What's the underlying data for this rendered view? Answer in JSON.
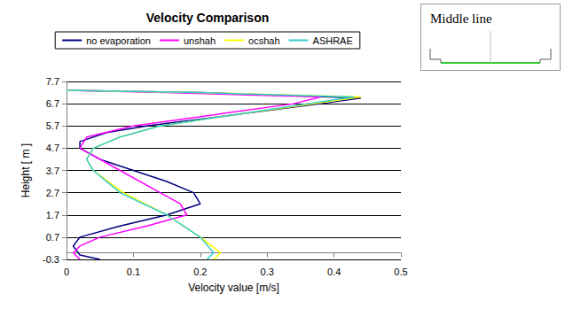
{
  "chart_data": {
    "type": "line",
    "title": "Velocity Comparison",
    "x_label": "Velocity value [m/s]",
    "y_label": "Height [ m ]",
    "xlim": [
      0,
      0.5
    ],
    "xticks": [
      0,
      0.1,
      0.2,
      0.3,
      0.4,
      0.5
    ],
    "ylim": [
      -0.3,
      7.7
    ],
    "yticks": [
      -0.3,
      0.7,
      1.7,
      2.7,
      3.7,
      4.7,
      5.7,
      6.7,
      7.7
    ],
    "grid": true,
    "legend": "top",
    "series": [
      {
        "name": "no evaporation",
        "color": "#000080",
        "x": [
          0.05,
          0.02,
          0.01,
          0.02,
          0.08,
          0.15,
          0.2,
          0.19,
          0.15,
          0.1,
          0.05,
          0.02,
          0.02,
          0.06,
          0.12,
          0.25,
          0.38,
          0.44,
          0.2,
          0.0
        ],
        "y": [
          -0.3,
          -0.1,
          0.3,
          0.7,
          1.2,
          1.7,
          2.2,
          2.7,
          3.2,
          3.7,
          4.2,
          4.7,
          5.0,
          5.4,
          5.7,
          6.2,
          6.7,
          6.95,
          7.2,
          7.3
        ]
      },
      {
        "name": "unshah",
        "color": "#ff00ff",
        "x": [
          0.02,
          0.01,
          0.02,
          0.05,
          0.12,
          0.18,
          0.17,
          0.14,
          0.08,
          0.02,
          0.03,
          0.1,
          0.22,
          0.34,
          0.38,
          0.15,
          0.0
        ],
        "y": [
          -0.3,
          0.0,
          0.3,
          0.7,
          1.2,
          1.7,
          2.2,
          2.7,
          3.7,
          4.7,
          5.2,
          5.7,
          6.2,
          6.7,
          7.0,
          7.2,
          7.3
        ]
      },
      {
        "name": "ocshah",
        "color": "#ffff00",
        "x": [
          0.22,
          0.23,
          0.2,
          0.15,
          0.085,
          0.04,
          0.03,
          0.04,
          0.08,
          0.14,
          0.25,
          0.37,
          0.44,
          0.2,
          0.0
        ],
        "y": [
          -0.3,
          0.0,
          0.7,
          1.7,
          2.7,
          3.7,
          4.2,
          4.7,
          5.2,
          5.7,
          6.2,
          6.7,
          7.0,
          7.2,
          7.3
        ]
      },
      {
        "name": "ASHRAE",
        "color": "#33cccc",
        "x": [
          0.21,
          0.22,
          0.2,
          0.15,
          0.08,
          0.04,
          0.03,
          0.04,
          0.08,
          0.14,
          0.25,
          0.36,
          0.43,
          0.2,
          0.0
        ],
        "y": [
          -0.3,
          0.0,
          0.7,
          1.7,
          2.7,
          3.7,
          4.2,
          4.7,
          5.2,
          5.7,
          6.2,
          6.7,
          7.0,
          7.2,
          7.3
        ]
      }
    ]
  },
  "inset": {
    "label": "Middle line"
  }
}
